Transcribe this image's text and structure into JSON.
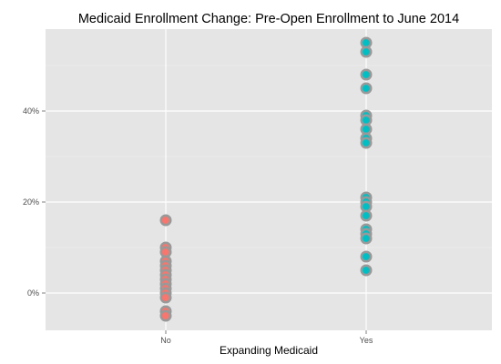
{
  "chart_data": {
    "type": "scatter",
    "title": "Medicaid Enrollment Change: Pre-Open Enrollment to June 2014",
    "xlabel": "Expanding Medicaid",
    "ylabel": "",
    "categories": [
      "No",
      "Yes"
    ],
    "y_tick_labels": [
      "0%",
      "20%",
      "40%"
    ],
    "y_ticks": [
      0,
      20,
      40
    ],
    "ylim": [
      -8,
      58
    ],
    "grid": true,
    "point_outline_color": "#999999",
    "series": [
      {
        "category": "No",
        "color": "#F8766D",
        "values": [
          16,
          10,
          9,
          7,
          6,
          5,
          4,
          3,
          2,
          1,
          0,
          -1,
          -4,
          -5
        ]
      },
      {
        "category": "Yes",
        "color": "#00BFC4",
        "values": [
          55,
          53,
          48,
          45,
          39,
          38,
          36,
          34,
          33,
          21,
          20,
          19,
          17,
          14,
          13,
          12,
          8,
          5
        ]
      }
    ]
  }
}
